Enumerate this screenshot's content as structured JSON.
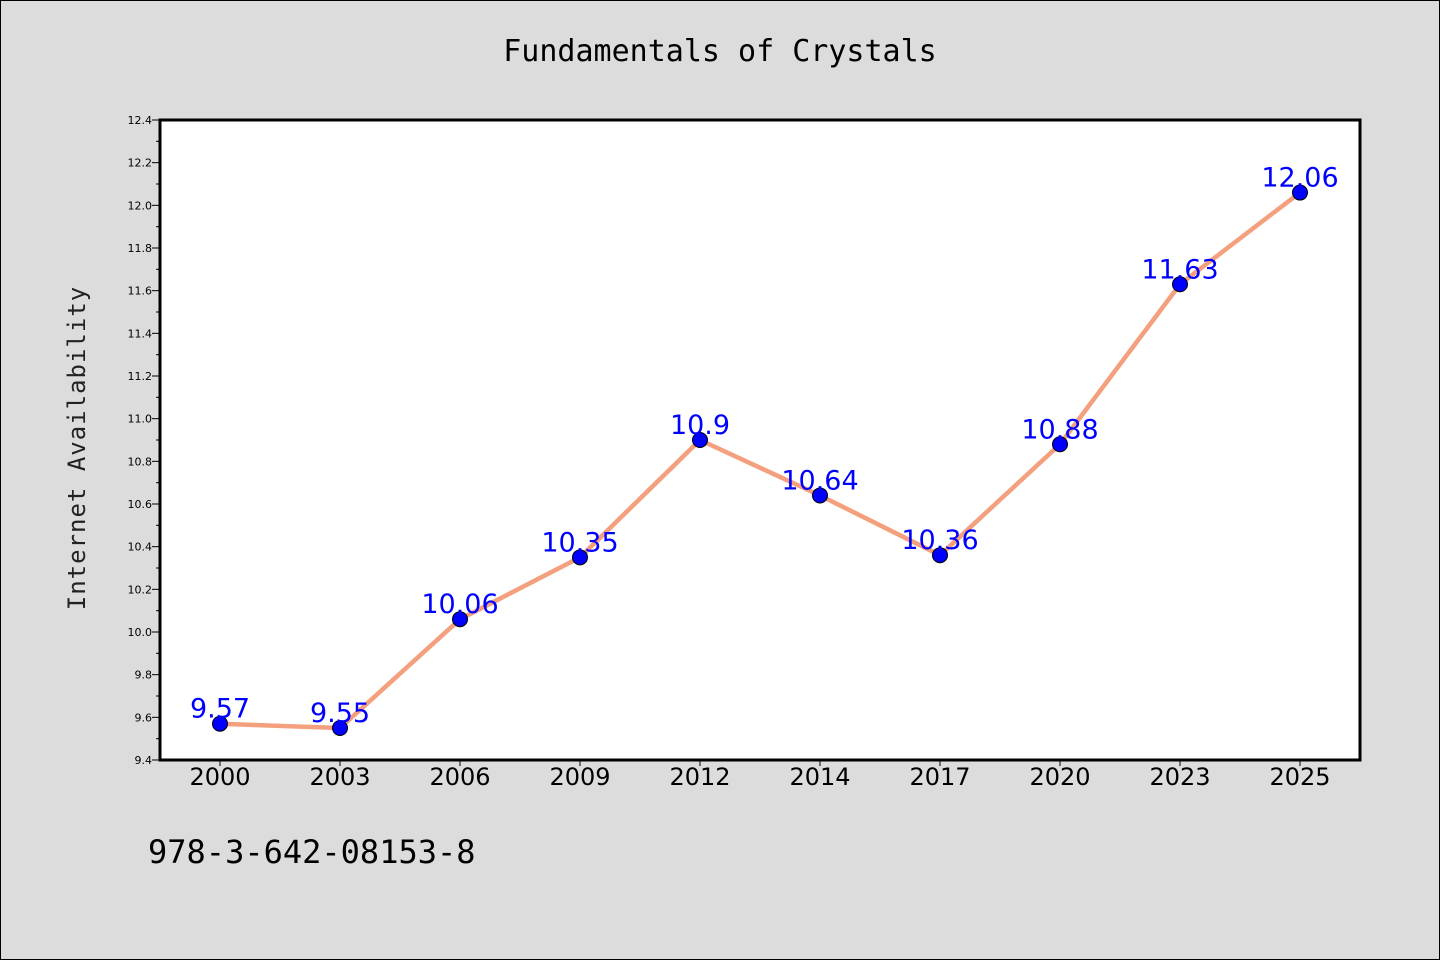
{
  "chart_data": {
    "type": "line",
    "title": "Fundamentals of Crystals",
    "xlabel": "",
    "ylabel": "Internet Availability",
    "categories": [
      "2000",
      "2003",
      "2006",
      "2009",
      "2012",
      "2014",
      "2017",
      "2020",
      "2023",
      "2025"
    ],
    "series": [
      {
        "values": [
          9.57,
          9.55,
          10.06,
          10.35,
          10.9,
          10.64,
          10.36,
          10.88,
          11.63,
          12.06
        ],
        "labels": [
          "9.57",
          "9.55",
          "10.06",
          "10.35",
          "10.9",
          "10.64",
          "10.36",
          "10.88",
          "11.63",
          "12.06"
        ]
      }
    ],
    "ylim": [
      9.4,
      12.4
    ],
    "yticks": [
      "9.4",
      "9.6",
      "9.8",
      "10.0",
      "10.2",
      "10.4",
      "10.6",
      "10.8",
      "11.0",
      "11.2",
      "11.4",
      "11.6",
      "11.8",
      "12.0",
      "12.2",
      "12.4"
    ],
    "grid": false,
    "line_color": "#f4a07e",
    "marker_color": "#0000ff",
    "label_color": "#0000ff",
    "background_color": "#dcdcdc",
    "plot_background": "#ffffff"
  },
  "footer_text": "978-3-642-08153-8"
}
